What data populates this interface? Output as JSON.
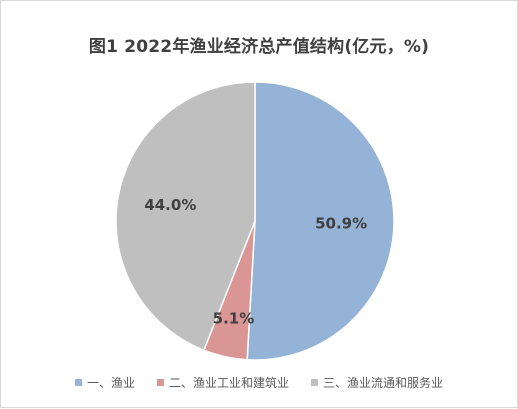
{
  "chart_data": {
    "type": "pie",
    "title": "图1  2022年渔业经济总产值结构(亿元，%)",
    "categories": [
      "一、渔业",
      "二、渔业工业和建筑业",
      "三、渔业流通和服务业"
    ],
    "values": [
      50.9,
      5.1,
      44.0
    ],
    "data_labels": [
      "50.9%",
      "5.1%",
      "44.0%"
    ],
    "colors": [
      "#95b3d7",
      "#d99694",
      "#bfbfbf"
    ],
    "start_angle_deg": 0,
    "direction": "clockwise",
    "legend": "bottom"
  }
}
